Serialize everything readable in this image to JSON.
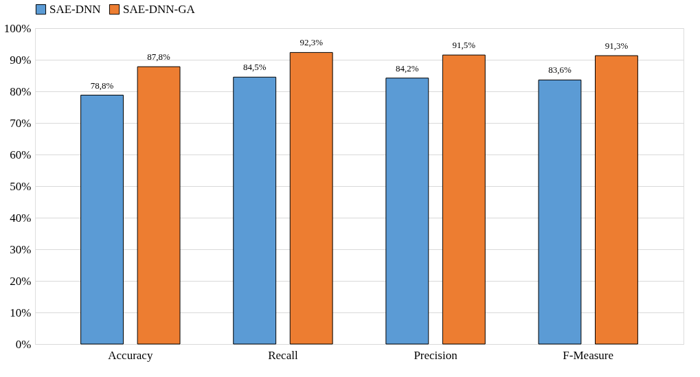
{
  "chart_data": {
    "type": "bar",
    "categories": [
      "Accuracy",
      "Recall",
      "Precision",
      "F-Measure"
    ],
    "series": [
      {
        "name": "SAE-DNN",
        "color": "#5b9bd5",
        "values": [
          78.8,
          84.5,
          84.2,
          83.6
        ],
        "value_labels": [
          "78,8%",
          "84,5%",
          "84,2%",
          "83,6%"
        ]
      },
      {
        "name": "SAE-DNN-GA",
        "color": "#ed7d31",
        "values": [
          87.8,
          92.3,
          91.5,
          91.3
        ],
        "value_labels": [
          "87,8%",
          "92,3%",
          "91,5%",
          "91,3%"
        ]
      }
    ],
    "ylim": [
      0,
      100
    ],
    "yticks": [
      {
        "value": 0,
        "label": "0%"
      },
      {
        "value": 10,
        "label": "10%"
      },
      {
        "value": 20,
        "label": "20%"
      },
      {
        "value": 30,
        "label": "30%"
      },
      {
        "value": 40,
        "label": "40%"
      },
      {
        "value": 50,
        "label": "50%"
      },
      {
        "value": 60,
        "label": "60%"
      },
      {
        "value": 70,
        "label": "70%"
      },
      {
        "value": 80,
        "label": "80%"
      },
      {
        "value": 90,
        "label": "90%"
      },
      {
        "value": 100,
        "label": "100%"
      }
    ],
    "grid": "y",
    "legend": "top"
  }
}
